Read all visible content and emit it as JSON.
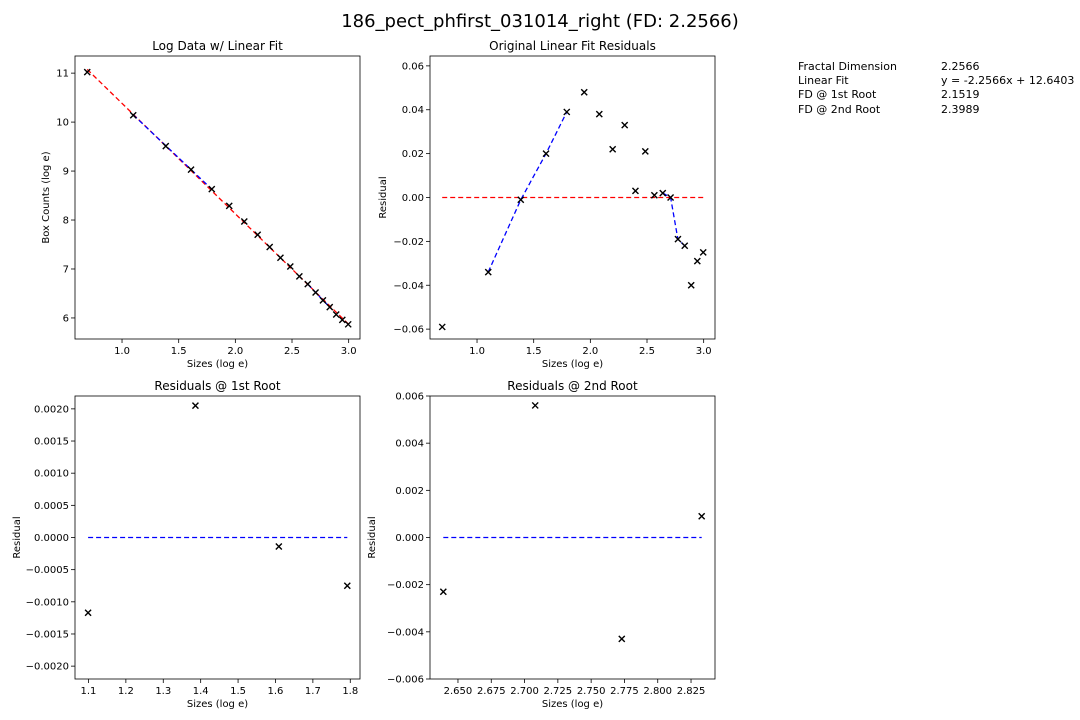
{
  "figure": {
    "title": "186_pect_phfirst_031014_right (FD: 2.2566)"
  },
  "stats": [
    {
      "label": "Fractal Dimension",
      "value": "2.2566"
    },
    {
      "label": "Linear Fit",
      "value": "y = -2.2566x + 12.6403"
    },
    {
      "label": "FD @ 1st Root",
      "value": "2.1519"
    },
    {
      "label": "FD @ 2nd Root",
      "value": "2.3989"
    }
  ],
  "chart_data": [
    {
      "id": "log-data",
      "type": "scatter",
      "title": "Log Data w/ Linear Fit",
      "xlabel": "Sizes (log e)",
      "ylabel": "Box Counts (log e)",
      "xlim": [
        0.585,
        3.1
      ],
      "ylim": [
        5.57,
        11.35
      ],
      "xticks": [
        1.0,
        1.5,
        2.0,
        2.5,
        3.0
      ],
      "xtick_labels": [
        "1.0",
        "1.5",
        "2.0",
        "2.5",
        "3.0"
      ],
      "yticks": [
        6,
        7,
        8,
        9,
        10,
        11
      ],
      "ytick_labels": [
        "6",
        "7",
        "8",
        "9",
        "10",
        "11"
      ],
      "points": {
        "x": [
          0.693,
          1.099,
          1.386,
          1.609,
          1.792,
          1.946,
          2.079,
          2.197,
          2.303,
          2.398,
          2.485,
          2.565,
          2.639,
          2.708,
          2.773,
          2.833,
          2.89,
          2.944,
          2.996
        ],
        "y": [
          11.02,
          10.14,
          9.51,
          9.03,
          8.63,
          8.29,
          7.97,
          7.7,
          7.45,
          7.23,
          7.05,
          6.85,
          6.69,
          6.52,
          6.36,
          6.22,
          6.07,
          5.96,
          5.87
        ]
      },
      "lines": [
        {
          "style": "dashed",
          "color": "#ff0000",
          "x": [
            0.693,
            2.996
          ],
          "y": [
            11.076,
            5.879
          ]
        },
        {
          "style": "dashed",
          "color": "#0000ff",
          "x": [
            1.099,
            1.792
          ],
          "y": [
            10.15,
            8.63
          ]
        },
        {
          "style": "dashed",
          "color": "#0000ff",
          "x": [
            2.639,
            2.833
          ],
          "y": [
            6.69,
            6.22
          ]
        }
      ]
    },
    {
      "id": "original-residuals",
      "type": "scatter",
      "title": "Original Linear Fit Residuals",
      "xlabel": "Sizes (log e)",
      "ylabel": "Residual",
      "xlim": [
        0.585,
        3.1
      ],
      "ylim": [
        -0.0645,
        0.0645
      ],
      "xticks": [
        1.0,
        1.5,
        2.0,
        2.5,
        3.0
      ],
      "xtick_labels": [
        "1.0",
        "1.5",
        "2.0",
        "2.5",
        "3.0"
      ],
      "yticks": [
        -0.06,
        -0.04,
        -0.02,
        0.0,
        0.02,
        0.04,
        0.06
      ],
      "ytick_labels": [
        "−0.06",
        "−0.04",
        "−0.02",
        "0.00",
        "0.02",
        "0.04",
        "0.06"
      ],
      "points": {
        "x": [
          0.693,
          1.099,
          1.386,
          1.609,
          1.792,
          1.946,
          2.079,
          2.197,
          2.303,
          2.398,
          2.485,
          2.565,
          2.639,
          2.708,
          2.773,
          2.833,
          2.89,
          2.944,
          2.996
        ],
        "y": [
          -0.059,
          -0.034,
          -0.001,
          0.02,
          0.039,
          0.048,
          0.038,
          0.022,
          0.033,
          0.003,
          0.021,
          0.001,
          0.002,
          0.0,
          -0.019,
          -0.022,
          -0.04,
          -0.029,
          -0.025
        ]
      },
      "lines": [
        {
          "style": "dashed",
          "color": "#ff0000",
          "x": [
            0.693,
            2.996
          ],
          "y": [
            0.0,
            0.0
          ]
        },
        {
          "style": "dashed",
          "color": "#0000ff",
          "x": [
            1.099,
            1.386,
            1.609,
            1.792
          ],
          "y": [
            -0.034,
            -0.001,
            0.02,
            0.039
          ]
        },
        {
          "style": "dashed",
          "color": "#0000ff",
          "x": [
            2.639,
            2.708,
            2.773,
            2.833
          ],
          "y": [
            0.002,
            0.0,
            -0.019,
            -0.022
          ]
        }
      ]
    },
    {
      "id": "residuals-1st-root",
      "type": "scatter",
      "title": "Residuals @ 1st Root",
      "xlabel": "Sizes (log e)",
      "ylabel": "Residual",
      "xlim": [
        1.064,
        1.826
      ],
      "ylim": [
        -0.0022,
        0.0022
      ],
      "xticks": [
        1.1,
        1.2,
        1.3,
        1.4,
        1.5,
        1.6,
        1.7,
        1.8
      ],
      "xtick_labels": [
        "1.1",
        "1.2",
        "1.3",
        "1.4",
        "1.5",
        "1.6",
        "1.7",
        "1.8"
      ],
      "yticks": [
        -0.002,
        -0.0015,
        -0.001,
        -0.0005,
        0.0,
        0.0005,
        0.001,
        0.0015,
        0.002
      ],
      "ytick_labels": [
        "−0.0020",
        "−0.0015",
        "−0.0010",
        "−0.0005",
        "0.0000",
        "0.0005",
        "0.0010",
        "0.0015",
        "0.0020"
      ],
      "points": {
        "x": [
          1.099,
          1.386,
          1.609,
          1.792
        ],
        "y": [
          -0.00117,
          0.00205,
          -0.00014,
          -0.00075
        ]
      },
      "lines": [
        {
          "style": "dashed",
          "color": "#0000ff",
          "x": [
            1.099,
            1.792
          ],
          "y": [
            0.0,
            0.0
          ]
        }
      ]
    },
    {
      "id": "residuals-2nd-root",
      "type": "scatter",
      "title": "Residuals @ 2nd Root",
      "xlabel": "Sizes (log e)",
      "ylabel": "Residual",
      "xlim": [
        2.629,
        2.843
      ],
      "ylim": [
        -0.006,
        0.006
      ],
      "xticks": [
        2.65,
        2.675,
        2.7,
        2.725,
        2.75,
        2.775,
        2.8,
        2.825
      ],
      "xtick_labels": [
        "2.650",
        "2.675",
        "2.700",
        "2.725",
        "2.750",
        "2.775",
        "2.800",
        "2.825"
      ],
      "yticks": [
        -0.006,
        -0.004,
        -0.002,
        0.0,
        0.002,
        0.004,
        0.006
      ],
      "ytick_labels": [
        "−0.006",
        "−0.004",
        "−0.002",
        "0.000",
        "0.002",
        "0.004",
        "0.006"
      ],
      "points": {
        "x": [
          2.639,
          2.708,
          2.773,
          2.833
        ],
        "y": [
          -0.0023,
          0.0056,
          -0.0043,
          0.0009
        ]
      },
      "lines": [
        {
          "style": "dashed",
          "color": "#0000ff",
          "x": [
            2.639,
            2.833
          ],
          "y": [
            0.0,
            0.0
          ]
        }
      ]
    }
  ]
}
